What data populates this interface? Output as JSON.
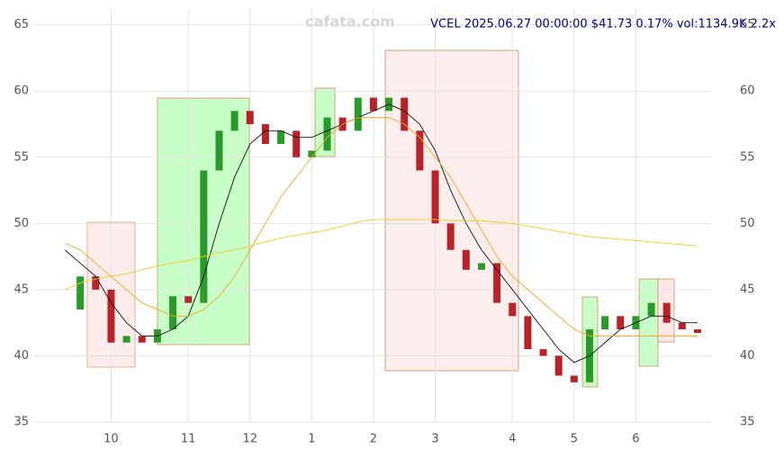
{
  "chart_data": {
    "type": "candlestick",
    "title": "VCEL 2025.06.27 00:00:00 $41.73 0.17% vol:1134.9K 2.2x",
    "watermark": "cafata.com",
    "categories": [
      null,
      null,
      null,
      "10",
      null,
      null,
      null,
      null,
      "11",
      null,
      null,
      null,
      "12",
      null,
      null,
      null,
      "1",
      null,
      null,
      null,
      "2",
      null,
      null,
      null,
      "3",
      null,
      null,
      null,
      null,
      "4",
      null,
      null,
      null,
      "5",
      null,
      null,
      null,
      "6",
      null,
      null,
      null,
      null
    ],
    "series": [
      {
        "type": "candlestick",
        "up_color": "#2a9a2a",
        "down_color": "#b82228",
        "values": [
          43.5,
          46,
          45,
          41,
          41.5,
          41,
          42,
          44.5,
          44,
          54,
          57,
          58.5,
          57.5,
          56,
          57,
          55,
          55.5,
          58,
          57,
          59.5,
          58.5,
          59.5,
          57,
          54,
          50,
          48,
          46.5,
          47,
          44,
          43,
          40.5,
          40,
          38.5,
          38,
          42,
          43,
          42,
          43,
          44,
          42.5,
          42,
          41.73
        ]
      },
      {
        "type": "line",
        "color": "#111111",
        "values": [
          48,
          47,
          46,
          44,
          42.5,
          41.5,
          41.5,
          42,
          43,
          46,
          50,
          53.5,
          56,
          57,
          57,
          56.5,
          56.5,
          57,
          57.5,
          58,
          58.5,
          59,
          58.5,
          57.5,
          55.5,
          52.5,
          50,
          48,
          46.5,
          45,
          43.5,
          42,
          40.5,
          39.5,
          40,
          41,
          42,
          42.5,
          43,
          43,
          42.5,
          42.5
        ]
      },
      {
        "type": "line",
        "color": "#f5a623",
        "values": [
          48.5,
          48,
          47,
          46,
          45,
          44,
          43.5,
          43,
          43,
          43.5,
          44.5,
          46,
          48,
          50,
          52,
          53.5,
          55,
          56.5,
          57.5,
          58,
          58,
          58,
          57.5,
          56.5,
          55,
          53.5,
          51.5,
          49.5,
          47.5,
          46,
          45,
          44,
          43,
          42,
          41.5,
          41.5,
          41.5,
          41.5,
          41.5,
          41.5,
          41.5,
          41.5
        ]
      },
      {
        "type": "line",
        "color": "#f2cc1a",
        "values": [
          45,
          45.5,
          45.8,
          46,
          46.2,
          46.5,
          46.8,
          47,
          47.2,
          47.5,
          47.8,
          48,
          48.3,
          48.6,
          48.9,
          49.1,
          49.3,
          49.5,
          49.8,
          50.1,
          50.3,
          50.3,
          50.3,
          50.3,
          50.3,
          50.2,
          50.2,
          50.2,
          50.1,
          50,
          49.8,
          49.6,
          49.4,
          49.2,
          49,
          48.9,
          48.8,
          48.7,
          48.6,
          48.5,
          48.4,
          48.3
        ]
      }
    ],
    "ylim": [
      35,
      66.2
    ],
    "yticks": [
      35,
      40,
      45,
      50,
      55,
      60,
      65
    ],
    "grid": true
  }
}
